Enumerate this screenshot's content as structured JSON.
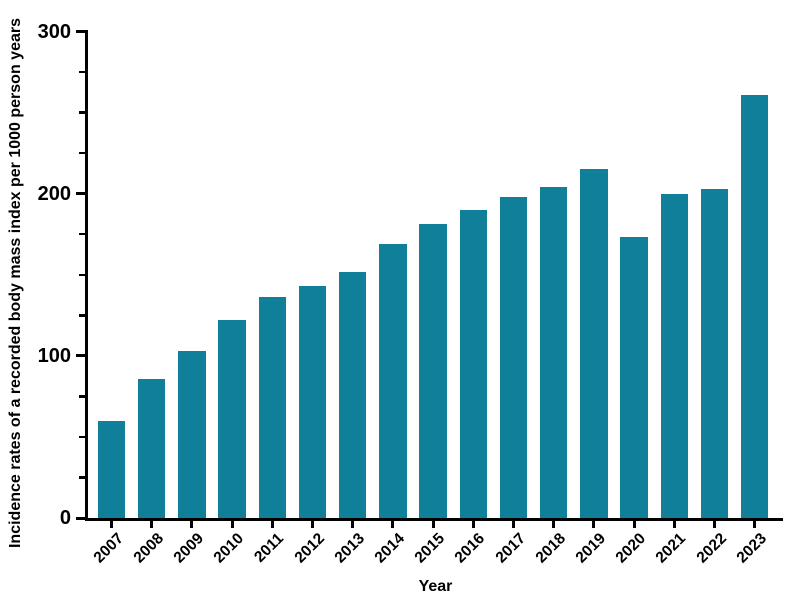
{
  "chart_data": {
    "type": "bar",
    "title": "",
    "xlabel": "Year",
    "ylabel": "Incidence rates of a recorded body mass index per 1000 person years",
    "categories": [
      "2007",
      "2008",
      "2009",
      "2010",
      "2011",
      "2012",
      "2013",
      "2014",
      "2015",
      "2016",
      "2017",
      "2018",
      "2019",
      "2020",
      "2021",
      "2022",
      "2023"
    ],
    "values": [
      60,
      86,
      103,
      122,
      136,
      143,
      152,
      169,
      181,
      190,
      198,
      204,
      215,
      173,
      200,
      203,
      261
    ],
    "ylim": [
      0,
      300
    ],
    "yticks": {
      "major": [
        0,
        100,
        200,
        300
      ],
      "minor_step": 25
    },
    "grid": false,
    "legend": "none",
    "bar_color": "#107f99",
    "axis_color": "#000000",
    "background_color": "#ffffff"
  }
}
